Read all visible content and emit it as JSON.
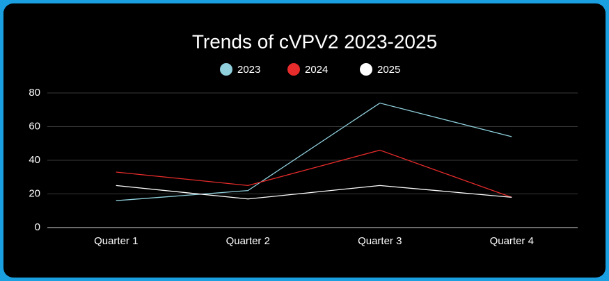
{
  "chart_data": {
    "type": "line",
    "title": "Trends of cVPV2 2023-2025",
    "categories": [
      "Quarter 1",
      "Quarter 2",
      "Quarter 3",
      "Quarter 4"
    ],
    "series": [
      {
        "name": "2023",
        "color": "#8fd0dc",
        "values": [
          16,
          22,
          74,
          54
        ]
      },
      {
        "name": "2024",
        "color": "#e82b2b",
        "values": [
          33,
          25,
          46,
          18
        ]
      },
      {
        "name": "2025",
        "color": "#ffffff",
        "values": [
          25,
          17,
          25,
          18
        ]
      }
    ],
    "ylim": [
      0,
      80
    ],
    "yticks": [
      0,
      20,
      40,
      60,
      80
    ],
    "grid": true,
    "legend": "top"
  }
}
